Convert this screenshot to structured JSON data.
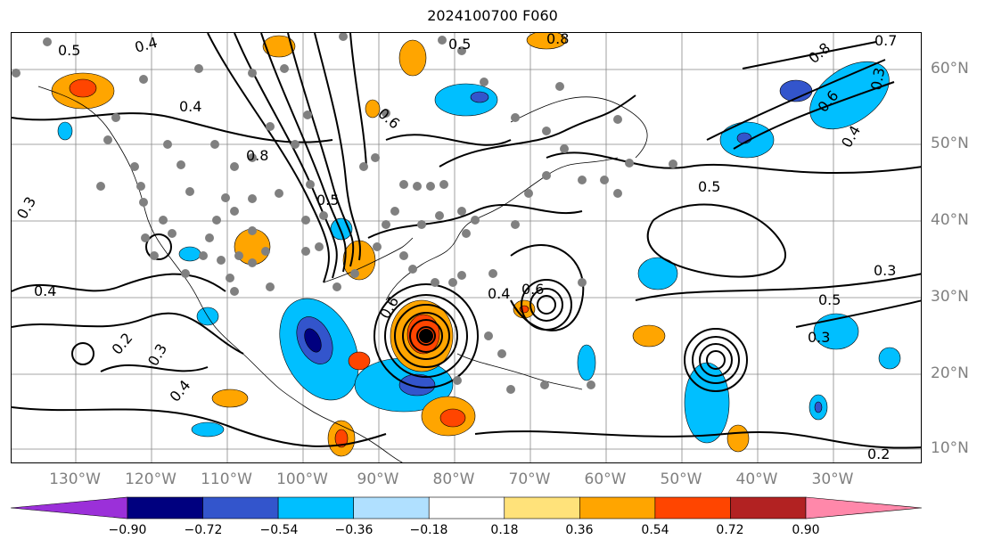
{
  "title": "2024100700 F060",
  "longitude_labels": [
    "130°W",
    "120°W",
    "110°W",
    "100°W",
    "90°W",
    "80°W",
    "70°W",
    "60°W",
    "50°W",
    "40°W",
    "30°W"
  ],
  "latitude_labels": [
    "60°N",
    "50°N",
    "40°N",
    "30°N",
    "20°N",
    "10°N"
  ],
  "contour_labels": [
    "0.5",
    "0.4",
    "0.4",
    "0.8",
    "0.6",
    "0.5",
    "0.3",
    "0.4",
    "0.2",
    "0.3",
    "0.4",
    "0.5",
    "0.3",
    "0.4",
    "0.6",
    "0.3",
    "0.5",
    "0.2",
    "0.8",
    "0.6",
    "0.4",
    "0.3",
    "0.7",
    "0.8",
    "0.5",
    "0.6"
  ],
  "colorbar": {
    "ticks": [
      "−0.90",
      "−0.72",
      "−0.54",
      "−0.36",
      "−0.18",
      "0.18",
      "0.36",
      "0.54",
      "0.72",
      "0.90"
    ],
    "colors": [
      "#9b30d9",
      "#00007f",
      "#3355cc",
      "#00bfff",
      "#b0e0ff",
      "#ffffff",
      "#ffe27a",
      "#ffa500",
      "#ff4500",
      "#b22222",
      "#ff88aa"
    ]
  },
  "field_colors": {
    "positive_light": "#ffa500",
    "positive_strong": "#ff4500",
    "negative_light": "#00bfff",
    "negative_strong": "#3355cc",
    "negative_extreme": "#00007f",
    "station_dots": "#808080",
    "contours": "#000000",
    "coastlines": "#000000",
    "grid": "#888888"
  }
}
